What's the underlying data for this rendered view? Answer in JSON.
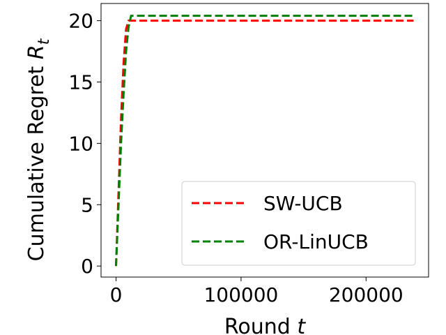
{
  "chart_data": {
    "type": "line",
    "xlabel": "Round t",
    "ylabel": "Cumulative Regret R_t",
    "xlim": [
      -12000,
      250000
    ],
    "ylim": [
      -0.9,
      21.4
    ],
    "xticks": [
      0,
      100000,
      200000
    ],
    "xtick_labels": [
      "0",
      "100000",
      "200000"
    ],
    "yticks": [
      0,
      5,
      10,
      15,
      20
    ],
    "ytick_labels": [
      "0",
      "5",
      "10",
      "15",
      "20"
    ],
    "grid": false,
    "legend_position": "lower-right",
    "series": [
      {
        "name": "SW-UCB",
        "color": "#ff0000",
        "style": "dashed",
        "x": [
          0,
          2000,
          4000,
          6000,
          8000,
          10000,
          238000
        ],
        "y": [
          0,
          6,
          12,
          16.5,
          19.3,
          20.0,
          20.0
        ]
      },
      {
        "name": "OR-LinUCB",
        "color": "#008000",
        "style": "dashed",
        "x": [
          0,
          2000,
          4000,
          6000,
          8000,
          10000,
          12000,
          238000
        ],
        "y": [
          0,
          5,
          10,
          14,
          17.5,
          19.5,
          20.4,
          20.4
        ]
      }
    ]
  }
}
